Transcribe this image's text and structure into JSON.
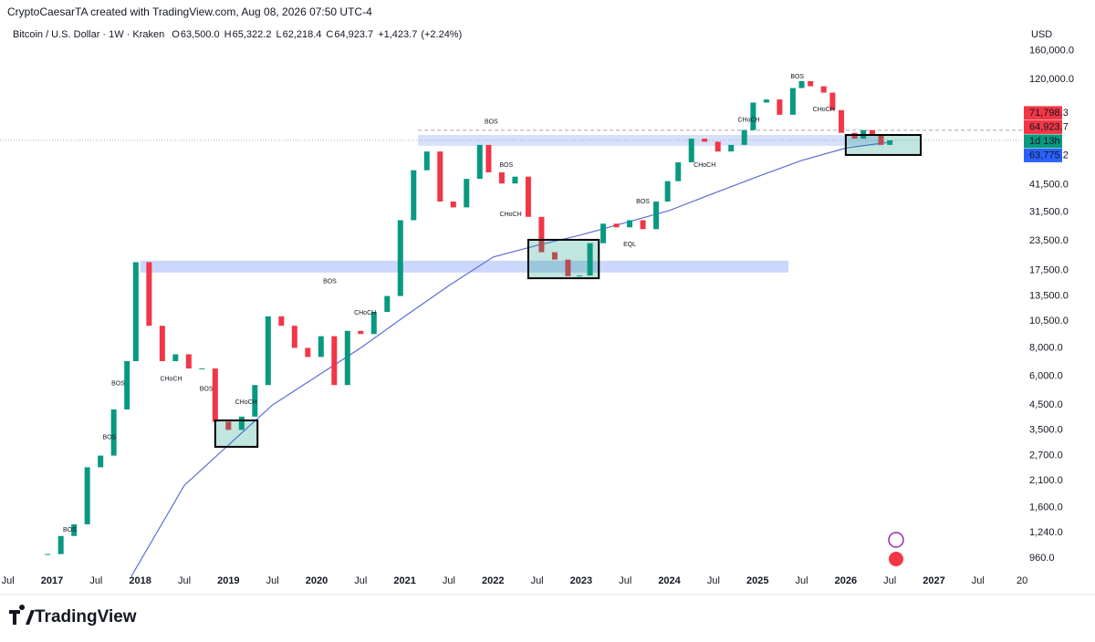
{
  "credit": "CryptoCaesarTA created with TradingView.com, Aug 08, 2026 07:50 UTC-4",
  "brand": "TradingView",
  "chart_data": {
    "type": "candlestick",
    "title": "Bitcoin / U.S. Dollar · 1W · Kraken",
    "stats": [
      {
        "name": "O",
        "value": 63500,
        "label": "63,500.0"
      },
      {
        "name": "H",
        "value": 65322.2,
        "label": "65,322.2"
      },
      {
        "name": "L",
        "value": 62218.4,
        "label": "62,218.4"
      },
      {
        "name": "C",
        "value": 64923.7,
        "label": "64,923.7"
      }
    ],
    "change": {
      "value": 1423.7,
      "label": "+1,423.7"
    },
    "change_pct": {
      "value": 2.24,
      "label": "(+2.24%)"
    },
    "currency": "USD",
    "up_color": "#089981",
    "down_color": "#f23645",
    "x": [
      2016.95,
      2017.1,
      2017.25,
      2017.4,
      2017.55,
      2017.7,
      2017.85,
      2017.95,
      2018.1,
      2018.25,
      2018.4,
      2018.55,
      2018.7,
      2018.85,
      2019.0,
      2019.15,
      2019.3,
      2019.45,
      2019.6,
      2019.75,
      2019.9,
      2020.05,
      2020.2,
      2020.35,
      2020.5,
      2020.65,
      2020.8,
      2020.95,
      2021.1,
      2021.25,
      2021.4,
      2021.55,
      2021.7,
      2021.85,
      2021.95,
      2022.1,
      2022.25,
      2022.4,
      2022.55,
      2022.7,
      2022.85,
      2022.98,
      2023.1,
      2023.25,
      2023.4,
      2023.55,
      2023.7,
      2023.85,
      2023.98,
      2024.1,
      2024.25,
      2024.4,
      2024.55,
      2024.7,
      2024.85,
      2024.95,
      2025.1,
      2025.25,
      2025.4,
      2025.5,
      2025.6,
      2025.75,
      2025.85,
      2025.95,
      2026.1,
      2026.2,
      2026.3,
      2026.4,
      2026.5
    ],
    "close": [
      1000,
      1200,
      1350,
      2400,
      2700,
      4300,
      7000,
      19000,
      10000,
      7000,
      7500,
      6500,
      6500,
      3800,
      3500,
      4000,
      5500,
      11000,
      10000,
      8000,
      7300,
      9000,
      5500,
      9500,
      9200,
      11500,
      13500,
      29000,
      48000,
      58000,
      35000,
      33000,
      44000,
      62000,
      47000,
      42000,
      45000,
      30000,
      21000,
      19500,
      16500,
      16600,
      23000,
      28000,
      27000,
      29000,
      26500,
      35000,
      43000,
      52000,
      66000,
      64000,
      58000,
      62000,
      72000,
      95000,
      98000,
      84000,
      110000,
      118000,
      112000,
      105000,
      88000,
      70000,
      66000,
      72000,
      68000,
      62000,
      64923.7
    ],
    "moving_average": {
      "color": "#5b6fd6",
      "x": [
        2017.9,
        2018.5,
        2019.0,
        2019.5,
        2020.0,
        2020.5,
        2021.0,
        2021.5,
        2022.0,
        2022.5,
        2023.0,
        2024.0,
        2024.5,
        2025.0,
        2025.5,
        2026.0,
        2026.5
      ],
      "values": [
        800,
        2000,
        3000,
        4500,
        6000,
        8000,
        11000,
        15000,
        20000,
        22500,
        25000,
        32000,
        38000,
        45000,
        53000,
        60000,
        63775.2
      ]
    },
    "log_scale": true,
    "xlim": [
      2016.41,
      2028.05
    ],
    "xticks": [
      {
        "value": 2016.5,
        "label": "Jul"
      },
      2017,
      {
        "value": 2017.5,
        "label": "Jul"
      },
      2018,
      {
        "value": 2018.5,
        "label": "Jul"
      },
      2019,
      {
        "value": 2019.5,
        "label": "Jul"
      },
      2020,
      {
        "value": 2020.5,
        "label": "Jul"
      },
      2021,
      {
        "value": 2021.5,
        "label": "Jul"
      },
      2022,
      {
        "value": 2022.5,
        "label": "Jul"
      },
      2023,
      {
        "value": 2023.5,
        "label": "Jul"
      },
      2024,
      {
        "value": 2024.5,
        "label": "Jul"
      },
      2025,
      {
        "value": 2025.5,
        "label": "Jul"
      },
      2026,
      {
        "value": 2026.5,
        "label": "Jul"
      },
      2027,
      {
        "value": 2027.5,
        "label": "Jul"
      },
      {
        "value": 2028,
        "label": "20"
      }
    ],
    "ylim": [
      852,
      185000
    ],
    "yticks": [
      {
        "value": 960,
        "label": "960.0"
      },
      {
        "value": 1240,
        "label": "1,240.0"
      },
      {
        "value": 1600,
        "label": "1,600.0"
      },
      {
        "value": 2100,
        "label": "2,100.0"
      },
      {
        "value": 2700,
        "label": "2,700.0"
      },
      {
        "value": 3500,
        "label": "3,500.0"
      },
      {
        "value": 4500,
        "label": "4,500.0"
      },
      {
        "value": 6000,
        "label": "6,000.0"
      },
      {
        "value": 8000,
        "label": "8,000.0"
      },
      {
        "value": 10500,
        "label": "10,500.0"
      },
      {
        "value": 13500,
        "label": "13,500.0"
      },
      {
        "value": 17500,
        "label": "17,500.0"
      },
      {
        "value": 23500,
        "label": "23,500.0"
      },
      {
        "value": 31500,
        "label": "31,500.0"
      },
      {
        "value": 41500,
        "label": "41,500.0"
      },
      {
        "value": 120000,
        "label": "120,000.0"
      },
      {
        "value": 160000,
        "label": "160,000.0"
      }
    ],
    "zones": [
      {
        "x": [
          2018.0,
          2025.35
        ],
        "y": [
          17100,
          19280
        ],
        "color": "#c5d3fb"
      },
      {
        "x": [
          2021.15,
          2026.4
        ],
        "y": [
          61400,
          68500
        ],
        "color": "#d3defc"
      }
    ],
    "boxes": [
      {
        "x": [
          2018.85,
          2019.33
        ],
        "y": [
          2950,
          3850
        ]
      },
      {
        "x": [
          2022.4,
          2023.2
        ],
        "y": [
          16150,
          23800
        ]
      },
      {
        "x": [
          2026.0,
          2026.85
        ],
        "y": [
          56000,
          68500
        ]
      }
    ],
    "annotations": [
      {
        "text": "BOS",
        "x": 2020.15,
        "y": 15600,
        "color": "#089981"
      },
      {
        "text": "BOS",
        "x": 2021.98,
        "y": 78000,
        "color": "#089981"
      },
      {
        "text": "CHoCH",
        "x": 2018.35,
        "y": 5830,
        "color": "#f23645"
      },
      {
        "text": "BOS",
        "x": 2018.75,
        "y": 5280,
        "color": "#f23645"
      },
      {
        "text": "CHoCH",
        "x": 2019.2,
        "y": 4630,
        "color": "#089981"
      },
      {
        "text": "CHoCH",
        "x": 2020.55,
        "y": 11400,
        "color": "#089981"
      },
      {
        "text": "EQL",
        "x": 2023.55,
        "y": 22700,
        "color": "#089981"
      },
      {
        "text": "CHoCH",
        "x": 2024.9,
        "y": 79500,
        "color": "#089981"
      },
      {
        "text": "CHoCH",
        "x": 2025.75,
        "y": 88700,
        "color": "#f23645"
      },
      {
        "text": "BOS",
        "x": 2025.45,
        "y": 123500,
        "color": "#089981"
      },
      {
        "text": "CHoCH",
        "x": 2024.4,
        "y": 50600,
        "color": "#f23645"
      },
      {
        "text": "BOS",
        "x": 2022.15,
        "y": 50600,
        "color": "#089981"
      },
      {
        "text": "CHoCH",
        "x": 2022.2,
        "y": 30700,
        "color": "#f23645"
      },
      {
        "text": "BOS",
        "x": 2023.7,
        "y": 35000,
        "color": "#089981"
      },
      {
        "text": "BOS",
        "x": 2017.2,
        "y": 1277,
        "color": "#089981"
      },
      {
        "text": "BOS",
        "x": 2017.65,
        "y": 3240,
        "color": "#089981"
      },
      {
        "text": "BOS",
        "x": 2017.75,
        "y": 5580,
        "color": "#089981"
      }
    ],
    "price_labels": [
      {
        "value": 71798.3,
        "label": "71,798.3",
        "color": "#f23645"
      },
      {
        "value": 64923.7,
        "label": "64,923.7",
        "color": "#f23645"
      },
      {
        "label": "1d 13h",
        "color": "#089981"
      },
      {
        "value": 63775.2,
        "label": "63,775.2",
        "color": "#2962ff"
      }
    ]
  }
}
